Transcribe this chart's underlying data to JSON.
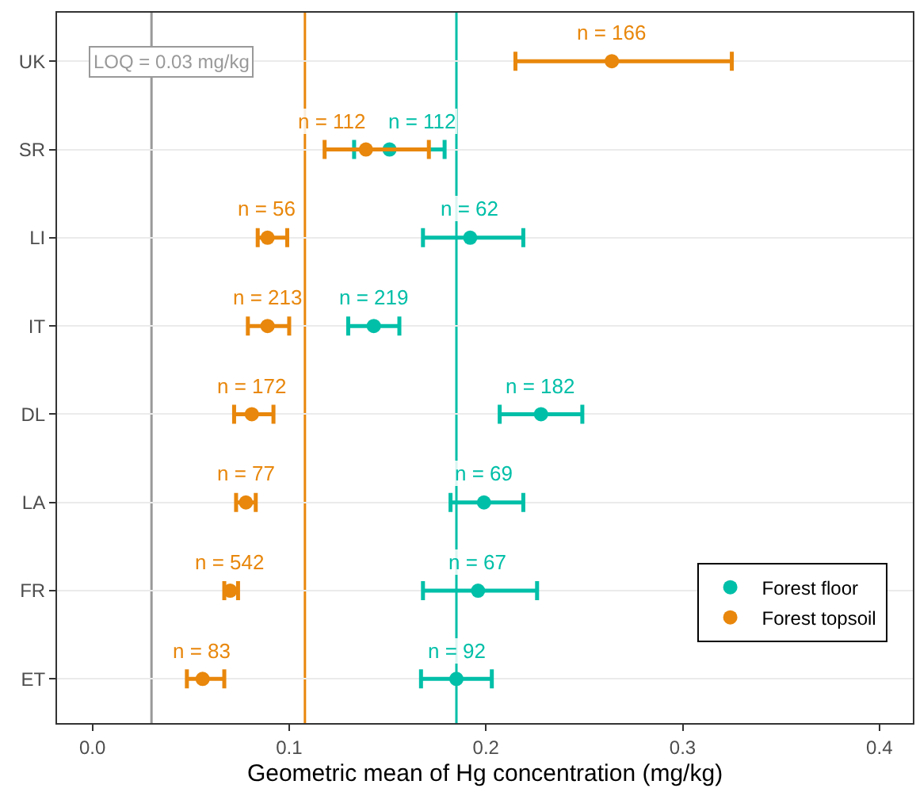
{
  "chart_data": {
    "type": "scatter",
    "orientation": "horizontal",
    "xlabel": "Geometric mean of Hg concentration (mg/kg)",
    "categories": [
      "UK",
      "SR",
      "LI",
      "IT",
      "DL",
      "LA",
      "FR",
      "ET"
    ],
    "series": [
      {
        "name": "Forest floor",
        "color": "#00bfa8",
        "values": [
          null,
          0.151,
          0.192,
          0.143,
          0.228,
          0.199,
          0.196,
          0.185
        ],
        "errors": [
          null,
          [
            0.133,
            0.179
          ],
          [
            0.168,
            0.219
          ],
          [
            0.13,
            0.156
          ],
          [
            0.207,
            0.249
          ],
          [
            0.182,
            0.219
          ],
          [
            0.168,
            0.226
          ],
          [
            0.167,
            0.203
          ]
        ]
      },
      {
        "name": "Forest topsoil",
        "color": "#e8870c",
        "values": [
          0.264,
          0.139,
          0.089,
          0.089,
          0.081,
          0.078,
          0.07,
          0.056
        ],
        "errors": [
          [
            0.215,
            0.325
          ],
          [
            0.118,
            0.171
          ],
          [
            0.084,
            0.099
          ],
          [
            0.079,
            0.1
          ],
          [
            0.072,
            0.092
          ],
          [
            0.073,
            0.083
          ],
          [
            0.067,
            0.074
          ],
          [
            0.048,
            0.067
          ]
        ]
      }
    ],
    "annotations": [
      {
        "text": "n = 112",
        "x": 0.168,
        "y": "SR"
      },
      {
        "text": "n = 62",
        "x": 0.192,
        "y": "LI"
      },
      {
        "text": "n = 219",
        "x": 0.143,
        "y": "IT"
      },
      {
        "text": "n = 182",
        "x": 0.228,
        "y": "DL"
      },
      {
        "text": "n = 69",
        "x": 0.199,
        "y": "LA"
      },
      {
        "text": "n = 67",
        "x": 0.196,
        "y": "FR"
      },
      {
        "text": "n = 92",
        "x": 0.185,
        "y": "ET"
      },
      {
        "text": "n = 166",
        "x": 0.264,
        "y": "UK"
      },
      {
        "text": "n = 112",
        "x": 0.122,
        "y": "SR"
      },
      {
        "text": "n = 56",
        "x": 0.089,
        "y": "LI"
      },
      {
        "text": "n = 213",
        "x": 0.089,
        "y": "IT"
      },
      {
        "text": "n = 172",
        "x": 0.081,
        "y": "DL"
      },
      {
        "text": "n = 77",
        "x": 0.078,
        "y": "LA"
      },
      {
        "text": "n = 542",
        "x": 0.07,
        "y": "FR"
      },
      {
        "text": "n = 83",
        "x": 0.056,
        "y": "ET"
      }
    ],
    "xlim": [
      -0.018,
      0.417
    ],
    "xticks": [
      {
        "value": 0,
        "label": "0.0"
      },
      0.1,
      0.2,
      0.3,
      0.4
    ],
    "ref_lines": [
      {
        "axis": "x",
        "value": 0.03,
        "label": "LOQ = 0.03 mg/kg",
        "color": "#999999"
      },
      {
        "axis": "x",
        "value": 0.108,
        "color": "#e8870c"
      },
      {
        "axis": "x",
        "value": 0.185,
        "color": "#00bfa8"
      }
    ],
    "grid": "y",
    "legend": "bottom right",
    "marker": "circle"
  }
}
